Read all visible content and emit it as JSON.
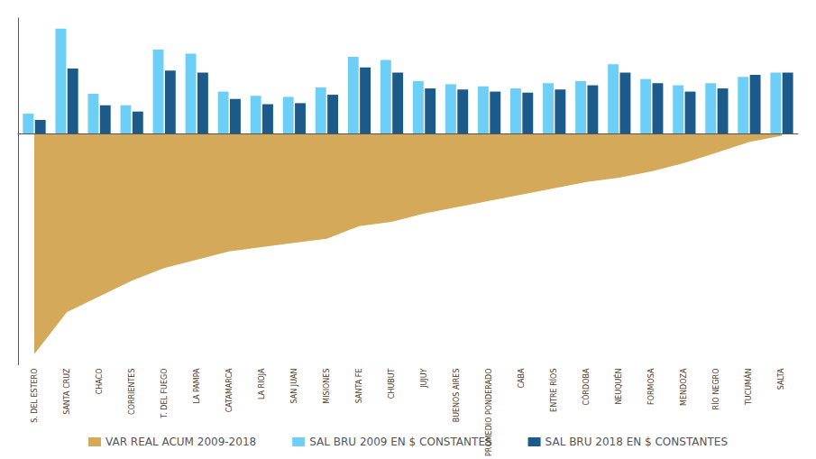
{
  "chart_data": {
    "type": "bar",
    "categories": [
      "S. DEL ESTERO",
      "SANTA CRUZ",
      "CHACO",
      "CORRIENTES",
      "T. DEL FUEGO",
      "LA PAMPA",
      "CATAMARCA",
      "LA RIOJA",
      "SAN JUAN",
      "MISIONES",
      "SANTA FE",
      "CHUBUT",
      "JUJUY",
      "BUENOS AIRES",
      "PROMEDIO PONDERADO",
      "CABA",
      "ENTRE RÍOS",
      "CÓRDOBA",
      "NEUQUÉN",
      "FORMOSA",
      "MENDOZA",
      "RÍO NEGRO",
      "TUCUMÁN",
      "SALTA"
    ],
    "series": [
      {
        "name": "VAR REAL ACUM 2009-2018",
        "type": "area",
        "color": "#d4aa5a",
        "values": [
          -210,
          -170,
          -155,
          -140,
          -128,
          -120,
          -112,
          -108,
          -104,
          -100,
          -88,
          -84,
          -76,
          -70,
          -64,
          -58,
          -52,
          -46,
          -42,
          -36,
          -28,
          -18,
          -8,
          -2
        ]
      },
      {
        "name": "SAL BRU 2009 EN $ CONSTANTES",
        "type": "bar",
        "color": "#6dcff6",
        "values": [
          19,
          100,
          38,
          27,
          80,
          76,
          40,
          36,
          35,
          44,
          73,
          70,
          50,
          47,
          45,
          43,
          48,
          50,
          66,
          52,
          46,
          48,
          54,
          58
        ]
      },
      {
        "name": "SAL BRU 2018 EN $ CONSTANTES",
        "type": "bar",
        "color": "#1c5a8a",
        "values": [
          13,
          62,
          27,
          21,
          60,
          58,
          33,
          28,
          29,
          37,
          63,
          58,
          43,
          42,
          40,
          39,
          42,
          46,
          58,
          48,
          40,
          43,
          56,
          58
        ]
      }
    ],
    "ylim": [
      -220,
      110
    ],
    "tick_labels": "x",
    "grid": false,
    "legend": "bottom"
  }
}
